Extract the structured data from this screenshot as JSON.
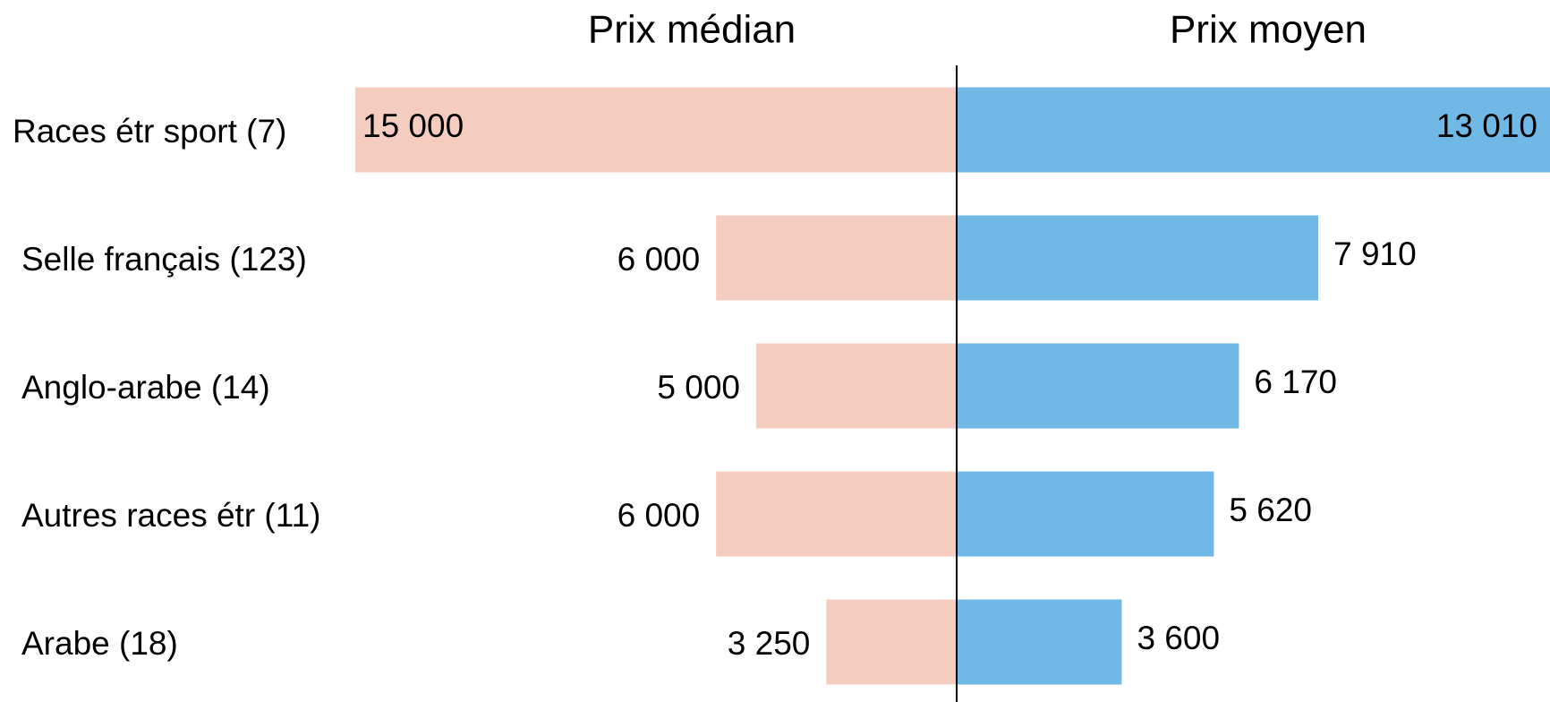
{
  "chart_data": {
    "type": "bar",
    "categories": [
      "Races étr sport (7)",
      "Selle français (123)",
      "Anglo-arabe (14)",
      "Autres races étr (11)",
      "Arabe (18)"
    ],
    "series": [
      {
        "name": "Prix médian",
        "color": "#f4ccc0",
        "xlim": [
          0,
          15000
        ],
        "values": [
          15000,
          6000,
          5000,
          6000,
          3250
        ],
        "value_labels": [
          "15 000",
          "6 000",
          "5 000",
          "6 000",
          "3 250"
        ]
      },
      {
        "name": "Prix moyen",
        "color": "#70b8e6",
        "xlim": [
          0,
          13010
        ],
        "values": [
          13010,
          7910,
          6170,
          5620,
          3600
        ],
        "value_labels": [
          "13 010",
          "7 910",
          "6 170",
          "5 620",
          "3 600"
        ]
      }
    ]
  }
}
